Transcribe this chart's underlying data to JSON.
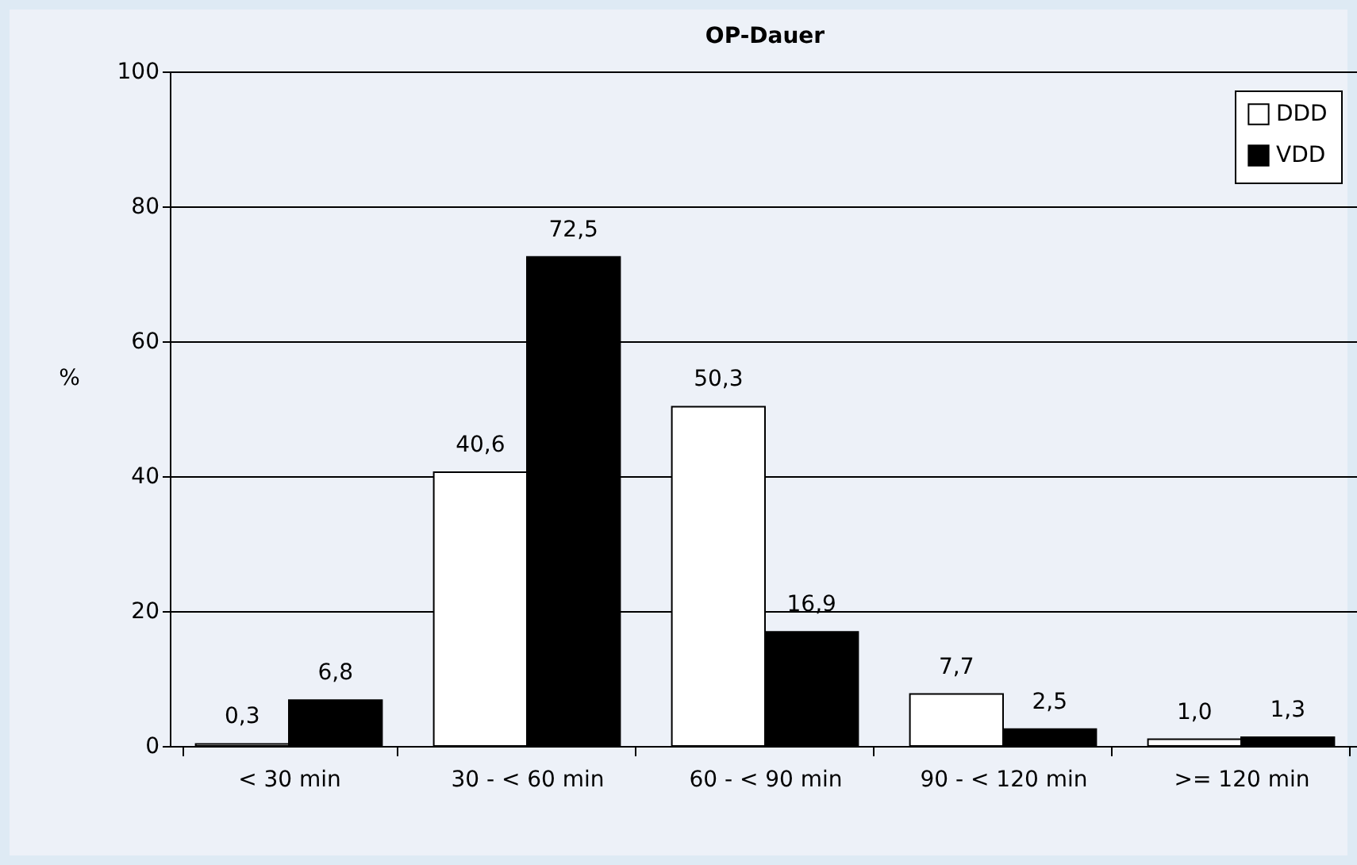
{
  "chart_data": {
    "type": "bar",
    "title": "OP-Dauer",
    "ylabel": "%",
    "categories": [
      "< 30 min",
      "30 - < 60 min",
      "60 - < 90 min",
      "90 - < 120 min",
      ">= 120 min"
    ],
    "series": [
      {
        "name": "DDD",
        "color": "#ffffff",
        "values": [
          0.3,
          40.6,
          50.3,
          7.7,
          1.0
        ],
        "value_labels": [
          "0,3",
          "40,6",
          "50,3",
          "7,7",
          "1,0"
        ]
      },
      {
        "name": "VDD",
        "color": "#000000",
        "values": [
          6.8,
          72.5,
          16.9,
          2.5,
          1.3
        ],
        "value_labels": [
          "6,8",
          "72,5",
          "16,9",
          "2,5",
          "1,3"
        ]
      }
    ],
    "ylim": [
      0,
      100
    ],
    "yticks": [
      0,
      20,
      40,
      60,
      80,
      100
    ],
    "grid": "y",
    "legend": "top right"
  }
}
